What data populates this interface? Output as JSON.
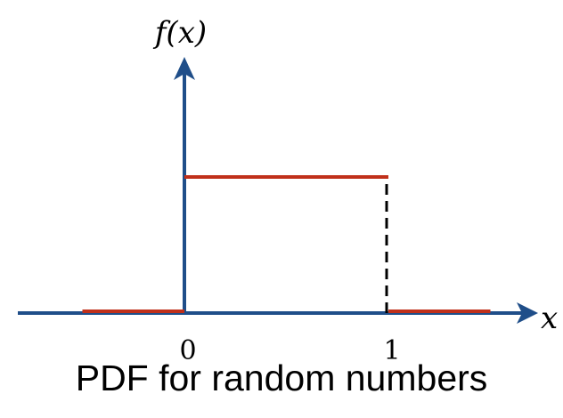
{
  "chart_data": {
    "type": "line",
    "caption": "PDF for random numbers",
    "xlabel": "x",
    "ylabel": "f(x)",
    "xlim": [
      -1.0,
      1.7
    ],
    "ylim": [
      0,
      1.65
    ],
    "xticks": [
      0,
      1
    ],
    "xtick_labels": [
      "0",
      "1"
    ],
    "segments": [
      {
        "x": [
          -0.5,
          0
        ],
        "y": [
          0,
          0
        ]
      },
      {
        "x": [
          0,
          1
        ],
        "y": [
          1,
          1
        ]
      },
      {
        "x": [
          1,
          1.5
        ],
        "y": [
          0,
          0
        ]
      }
    ],
    "dashed_segments": [
      {
        "x": [
          1,
          1
        ],
        "y": [
          0,
          1
        ]
      }
    ],
    "grid": false,
    "colors": {
      "axis": "#1f4e89",
      "pdf": "#c0301a",
      "dashed": "#000000"
    }
  }
}
